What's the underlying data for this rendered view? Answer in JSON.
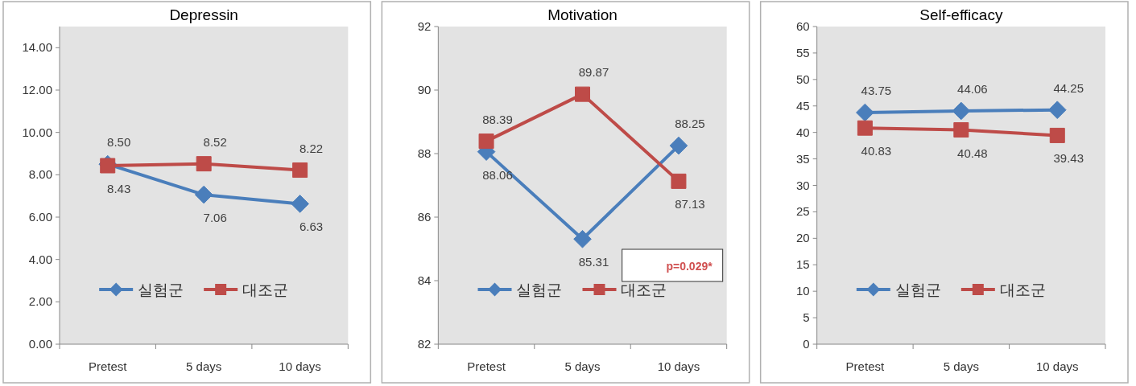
{
  "chart_data": [
    {
      "type": "line",
      "title": "Depressin",
      "categories": [
        "Pretest",
        "5 days",
        "10 days"
      ],
      "series": [
        {
          "name": "실험군",
          "color": "#4a7ebb",
          "marker": "diamond",
          "values": [
            8.5,
            7.06,
            6.63
          ],
          "value_labels": [
            "8.50",
            "7.06",
            "6.63"
          ]
        },
        {
          "name": "대조군",
          "color": "#be4b48",
          "marker": "square",
          "values": [
            8.43,
            8.52,
            8.22
          ],
          "value_labels": [
            "8.43",
            "8.52",
            "8.22"
          ]
        }
      ],
      "ylim": [
        0,
        15
      ],
      "yticks": [
        {
          "value": 0,
          "label": "0.00"
        },
        {
          "value": 2,
          "label": "2.00"
        },
        {
          "value": 4,
          "label": "4.00"
        },
        {
          "value": 6,
          "label": "6.00"
        },
        {
          "value": 8,
          "label": "8.00"
        },
        {
          "value": 10,
          "label": "10.00"
        },
        {
          "value": 12,
          "label": "12.00"
        },
        {
          "value": 14,
          "label": "14.00"
        }
      ],
      "legend": "bottom"
    },
    {
      "type": "line",
      "title": "Motivation",
      "categories": [
        "Pretest",
        "5 days",
        "10 days"
      ],
      "series": [
        {
          "name": "실험군",
          "color": "#4a7ebb",
          "marker": "diamond",
          "values": [
            88.06,
            85.31,
            88.25
          ],
          "value_labels": [
            "88.06",
            "85.31",
            "88.25"
          ]
        },
        {
          "name": "대조군",
          "color": "#be4b48",
          "marker": "square",
          "values": [
            88.39,
            89.87,
            87.13
          ],
          "value_labels": [
            "88.39",
            "89.87",
            "87.13"
          ]
        }
      ],
      "ylim": [
        82,
        92
      ],
      "yticks": [
        82,
        84,
        86,
        88,
        90,
        92
      ],
      "legend": "bottom",
      "annotations": [
        "p=0.029*"
      ]
    },
    {
      "type": "line",
      "title": "Self-efficacy",
      "categories": [
        "Pretest",
        "5 days",
        "10 days"
      ],
      "series": [
        {
          "name": "실험군",
          "color": "#4a7ebb",
          "marker": "diamond",
          "values": [
            43.75,
            44.06,
            44.25
          ],
          "value_labels": [
            "43.75",
            "44.06",
            "44.25"
          ]
        },
        {
          "name": "대조군",
          "color": "#be4b48",
          "marker": "square",
          "values": [
            40.83,
            40.48,
            39.43
          ],
          "value_labels": [
            "40.83",
            "40.48",
            "39.43"
          ]
        }
      ],
      "ylim": [
        0,
        60
      ],
      "yticks": [
        0,
        5,
        10,
        15,
        20,
        25,
        30,
        35,
        40,
        45,
        50,
        55,
        60
      ],
      "legend": "bottom"
    }
  ]
}
